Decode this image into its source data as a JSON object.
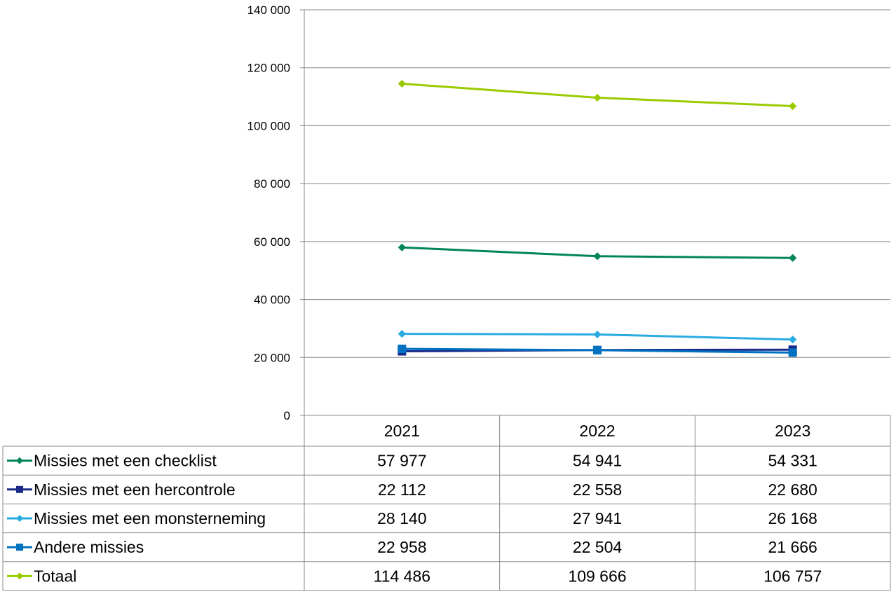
{
  "chart_data": {
    "type": "line",
    "categories": [
      "2021",
      "2022",
      "2023"
    ],
    "y_ticks": [
      "0",
      "20 000",
      "40 000",
      "60 000",
      "80 000",
      "100 000",
      "120 000",
      "140 000"
    ],
    "ylim": [
      0,
      140000
    ],
    "grid": true,
    "legend": "data table below chart",
    "series": [
      {
        "name": "Missies met een checklist",
        "values": [
          57977,
          54941,
          54331
        ],
        "labels": [
          "57 977",
          "54 941",
          "54 331"
        ],
        "color": "#00855a",
        "marker": "diamond"
      },
      {
        "name": "Missies met een hercontrole",
        "values": [
          22112,
          22558,
          22680
        ],
        "labels": [
          "22 112",
          "22 558",
          "22 680"
        ],
        "color": "#1a2a8a",
        "marker": "square"
      },
      {
        "name": "Missies met een monsterneming",
        "values": [
          28140,
          27941,
          26168
        ],
        "labels": [
          "28 140",
          "27 941",
          "26 168"
        ],
        "color": "#29abe2",
        "marker": "diamond"
      },
      {
        "name": "Andere missies",
        "values": [
          22958,
          22504,
          21666
        ],
        "labels": [
          "22 958",
          "22 504",
          "21 666"
        ],
        "color": "#0070c0",
        "marker": "square"
      },
      {
        "name": "Totaal",
        "values": [
          114486,
          109666,
          106757
        ],
        "labels": [
          "114 486",
          "109 666",
          "106 757"
        ],
        "color": "#99cc00",
        "marker": "diamond"
      }
    ]
  }
}
